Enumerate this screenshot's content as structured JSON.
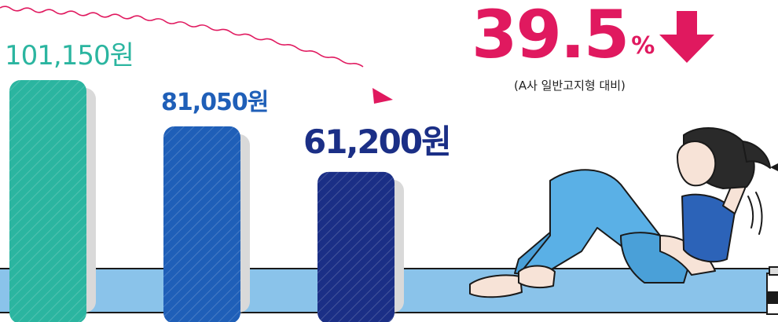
{
  "chart_data": {
    "type": "bar",
    "categories": [
      "",
      "",
      ""
    ],
    "values": [
      101150,
      81050,
      61200
    ],
    "value_labels": [
      "101,150원",
      "81,050원",
      "61,200원"
    ],
    "bar_colors": [
      "#2bb5a0",
      "#1f5fb8",
      "#1b2f86"
    ],
    "ylim": [
      0,
      101150
    ],
    "grid": false,
    "legend": "none"
  },
  "highlight": {
    "reduction_number": "39.5",
    "reduction_unit": "%",
    "note": "(A사 일반고지형 대비)",
    "color": "#e0195f"
  },
  "icons": [
    "trend-arrow-icon",
    "down-arrow-icon"
  ],
  "illustration": "woman-doing-crunches"
}
